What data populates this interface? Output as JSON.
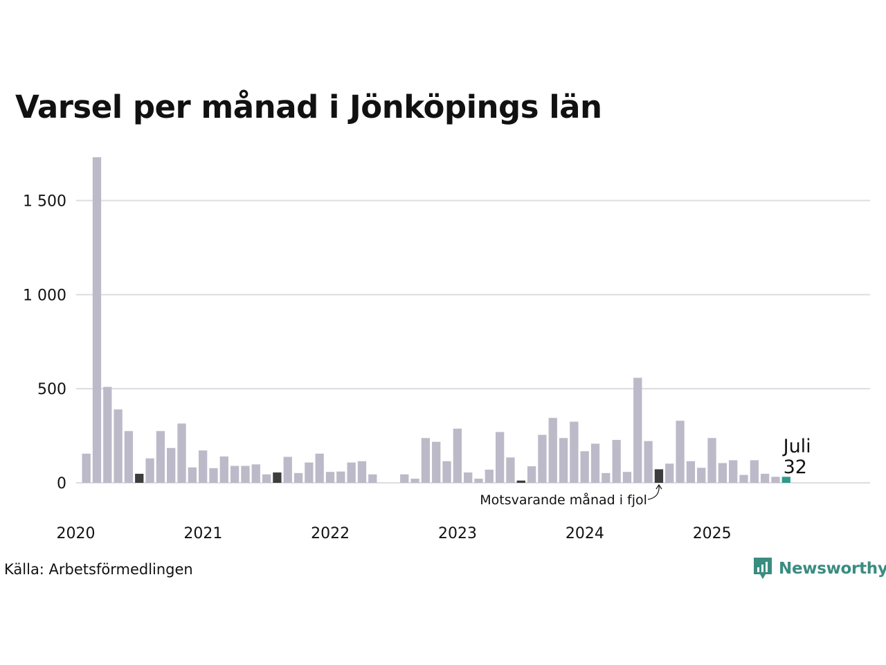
{
  "chart_data": {
    "type": "bar",
    "title": "Varsel per månad i Jönköpings län",
    "source": "Källa: Arbetsförmedlingen",
    "brand": "Newsworthy",
    "colors": {
      "default": "#bcbac8",
      "highlight_prev_year": "#3d3d3d",
      "current": "#2e9a8d"
    },
    "x_tick_labels": [
      "2020",
      "2021",
      "2022",
      "2023",
      "2024",
      "2025"
    ],
    "y_ticks": [
      0,
      500,
      1000,
      1500
    ],
    "y_tick_labels": [
      "0",
      "500",
      "1 000",
      "1 500"
    ],
    "ylim": [
      0,
      1750
    ],
    "grid": true,
    "x": [
      "2020-01",
      "2020-02",
      "2020-03",
      "2020-04",
      "2020-05",
      "2020-06",
      "2020-07",
      "2020-08",
      "2020-09",
      "2020-10",
      "2020-11",
      "2020-12",
      "2021-01",
      "2021-02",
      "2021-03",
      "2021-04",
      "2021-05",
      "2021-06",
      "2021-07",
      "2021-08",
      "2021-09",
      "2021-10",
      "2021-11",
      "2021-12",
      "2022-01",
      "2022-02",
      "2022-03",
      "2022-04",
      "2022-05",
      "2022-06",
      "2022-07",
      "2022-08",
      "2022-09",
      "2022-10",
      "2022-11",
      "2022-12",
      "2023-01",
      "2023-02",
      "2023-03",
      "2023-04",
      "2023-05",
      "2023-06",
      "2023-07",
      "2023-08",
      "2023-09",
      "2023-10",
      "2023-11",
      "2023-12",
      "2024-01",
      "2024-02",
      "2024-03",
      "2024-04",
      "2024-05",
      "2024-06",
      "2024-07",
      "2024-08",
      "2024-09",
      "2024-10",
      "2024-11",
      "2024-12",
      "2025-01",
      "2025-02",
      "2025-03",
      "2025-04",
      "2025-05",
      "2025-06",
      "2025-07"
    ],
    "values": [
      155,
      1730,
      510,
      390,
      275,
      48,
      130,
      275,
      185,
      315,
      82,
      172,
      78,
      140,
      90,
      90,
      98,
      45,
      55,
      138,
      52,
      108,
      155,
      58,
      60,
      108,
      115,
      45,
      0,
      0,
      45,
      22,
      238,
      218,
      115,
      288,
      55,
      22,
      70,
      270,
      135,
      12,
      88,
      255,
      345,
      238,
      325,
      168,
      208,
      52,
      228,
      58,
      558,
      222,
      72,
      102,
      330,
      115,
      80,
      238,
      105,
      120,
      42,
      120,
      48,
      32,
      32
    ],
    "highlighted": {
      "2020-06": "highlight_prev_year",
      "2021-07": "highlight_prev_year",
      "2023-06": "highlight_prev_year",
      "2024-07": "highlight_prev_year",
      "2025-07": "current"
    },
    "annotations": {
      "current_month_label": "Juli",
      "current_value_label": "32",
      "prev_year_label": "Motsvarande månad i fjol"
    }
  }
}
